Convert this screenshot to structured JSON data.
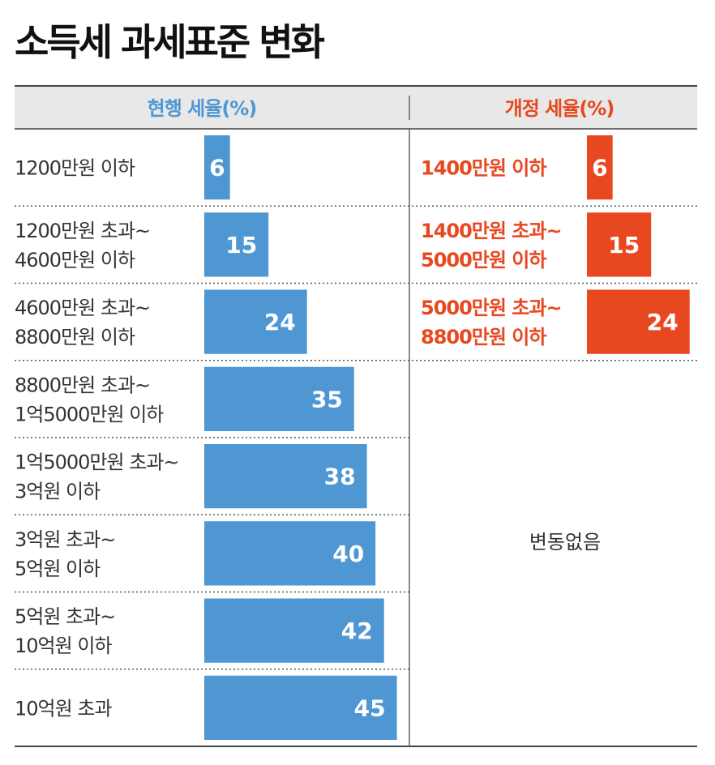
{
  "title": "소득세 과세표준 변화",
  "columns": {
    "current": "현행 세율(%)",
    "revised": "개정 세율(%)"
  },
  "no_change_label": "변동없음",
  "colors": {
    "current": "#4f97d3",
    "revised": "#e8481f",
    "header_bg": "#e8e8e8"
  },
  "chart_data": [
    {
      "type": "bar",
      "title": "현행 세율(%)",
      "orientation": "horizontal",
      "categories": [
        [
          "1200만원 이하"
        ],
        [
          "1200만원 초과~",
          "4600만원 이하"
        ],
        [
          "4600만원 초과~",
          "8800만원 이하"
        ],
        [
          "8800만원 초과~",
          "1억5000만원 이하"
        ],
        [
          "1억5000만원 초과~",
          "3억원 이하"
        ],
        [
          "3억원 초과~",
          "5억원 이하"
        ],
        [
          "5억원 초과~",
          "10억원 이하"
        ],
        [
          "10억원 초과"
        ]
      ],
      "values": [
        6,
        15,
        24,
        35,
        38,
        40,
        42,
        45
      ],
      "data_labels": true
    },
    {
      "type": "bar",
      "title": "개정 세율(%)",
      "orientation": "horizontal",
      "categories": [
        [
          "1400만원 이하"
        ],
        [
          "1400만원 초과~",
          "5000만원 이하"
        ],
        [
          "5000만원 초과~",
          "8800만원 이하"
        ]
      ],
      "values": [
        6,
        15,
        24
      ],
      "data_labels": true
    }
  ]
}
